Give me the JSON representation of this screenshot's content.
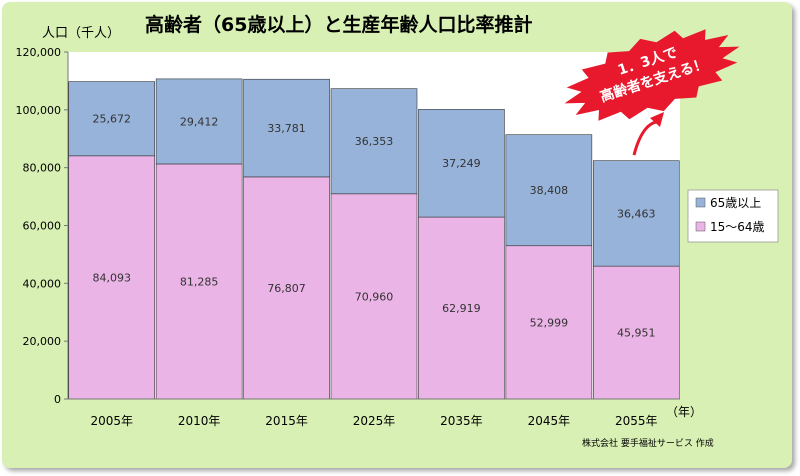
{
  "chart_data": {
    "type": "bar",
    "stacked": true,
    "title": "高齢者（65歳以上）と生産年齢人口比率推計",
    "ylabel": "人口（千人）",
    "xlabel_suffix": "（年）",
    "categories": [
      "2005年",
      "2010年",
      "2015年",
      "2025年",
      "2035年",
      "2045年",
      "2055年"
    ],
    "series": [
      {
        "name": "15～64歳",
        "color": "#ebb4e6",
        "values": [
          84093,
          81285,
          76807,
          70960,
          62919,
          52999,
          45951
        ]
      },
      {
        "name": "65歳以上",
        "color": "#97b3d9",
        "values": [
          25672,
          29412,
          33781,
          36353,
          37249,
          38408,
          36463
        ]
      }
    ],
    "ylim": [
      0,
      120000
    ],
    "yticks": [
      0,
      20000,
      40000,
      60000,
      80000,
      100000,
      120000
    ],
    "ytick_labels": [
      "0",
      "20,000",
      "40,000",
      "60,000",
      "80,000",
      "100,000",
      "120,000"
    ],
    "grid": false,
    "legend_position": "right",
    "annotation": {
      "lines": [
        "1．3人で",
        "高齢者を支える！"
      ],
      "color": "#e8192c"
    },
    "credit": "株式会社 要手福祉サービス 作成"
  }
}
